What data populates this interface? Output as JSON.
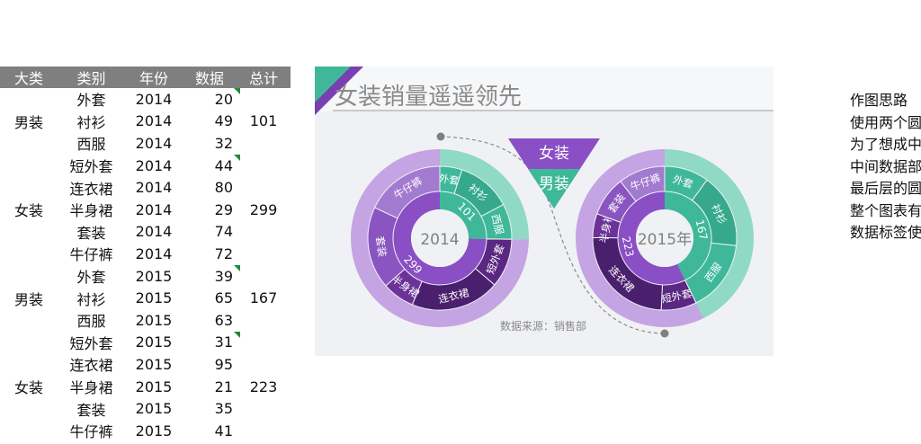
{
  "table": {
    "headers": [
      "大类",
      "类别",
      "年份",
      "数据",
      "总计"
    ],
    "rows": [
      {
        "group": "",
        "category": "外套",
        "year": "2014",
        "value": "20",
        "total": "",
        "flag": true
      },
      {
        "group": "男装",
        "category": "衬衫",
        "year": "2014",
        "value": "49",
        "total": "101",
        "flag": false
      },
      {
        "group": "",
        "category": "西服",
        "year": "2014",
        "value": "32",
        "total": "",
        "flag": false
      },
      {
        "group": "",
        "category": "短外套",
        "year": "2014",
        "value": "44",
        "total": "",
        "flag": true
      },
      {
        "group": "",
        "category": "连衣裙",
        "year": "2014",
        "value": "80",
        "total": "",
        "flag": false
      },
      {
        "group": "女装",
        "category": "半身裙",
        "year": "2014",
        "value": "29",
        "total": "299",
        "flag": false
      },
      {
        "group": "",
        "category": "套装",
        "year": "2014",
        "value": "74",
        "total": "",
        "flag": false
      },
      {
        "group": "",
        "category": "牛仔裤",
        "year": "2014",
        "value": "72",
        "total": "",
        "flag": false
      },
      {
        "group": "",
        "category": "外套",
        "year": "2015",
        "value": "39",
        "total": "",
        "flag": true
      },
      {
        "group": "男装",
        "category": "衬衫",
        "year": "2015",
        "value": "65",
        "total": "167",
        "flag": false
      },
      {
        "group": "",
        "category": "西服",
        "year": "2015",
        "value": "63",
        "total": "",
        "flag": false
      },
      {
        "group": "",
        "category": "短外套",
        "year": "2015",
        "value": "31",
        "total": "",
        "flag": true
      },
      {
        "group": "",
        "category": "连衣裙",
        "year": "2015",
        "value": "95",
        "total": "",
        "flag": false
      },
      {
        "group": "女装",
        "category": "半身裙",
        "year": "2015",
        "value": "21",
        "total": "223",
        "flag": false
      },
      {
        "group": "",
        "category": "套装",
        "year": "2015",
        "value": "35",
        "total": "",
        "flag": false
      },
      {
        "group": "",
        "category": "牛仔裤",
        "year": "2015",
        "value": "41",
        "total": "",
        "flag": false
      }
    ]
  },
  "chart_data": {
    "type": "pie",
    "title": "女装销量遥遥领先",
    "source": "数据来源：销售部",
    "legend": [
      {
        "label": "女装",
        "color": "#7a3fb0"
      },
      {
        "label": "男装",
        "color": "#3fb89a"
      }
    ],
    "colors": {
      "men": "#3fb89a",
      "men_light": "#8fd9c5",
      "women": "#8a4fc4",
      "women_light": "#c4a4e2",
      "women_dark": "#5a2782"
    },
    "years": [
      {
        "year_label": "2014",
        "men_total": "101",
        "women_total": "299",
        "slices": [
          {
            "category": "外套",
            "group": "男装",
            "value": 20
          },
          {
            "category": "衬衫",
            "group": "男装",
            "value": 49
          },
          {
            "category": "西服",
            "group": "男装",
            "value": 32
          },
          {
            "category": "短外套",
            "group": "女装",
            "value": 44
          },
          {
            "category": "连衣裙",
            "group": "女装",
            "value": 80
          },
          {
            "category": "半身裙",
            "group": "女装",
            "value": 29
          },
          {
            "category": "套装",
            "group": "女装",
            "value": 74
          },
          {
            "category": "牛仔裤",
            "group": "女装",
            "value": 72
          }
        ]
      },
      {
        "year_label": "2015年",
        "men_total": "167",
        "women_total": "223",
        "slices": [
          {
            "category": "外套",
            "group": "男装",
            "value": 39
          },
          {
            "category": "衬衫",
            "group": "男装",
            "value": 65
          },
          {
            "category": "西服",
            "group": "男装",
            "value": 63
          },
          {
            "category": "短外套",
            "group": "女装",
            "value": 31
          },
          {
            "category": "连衣裙",
            "group": "女装",
            "value": 95
          },
          {
            "category": "半身裙",
            "group": "女装",
            "value": 21
          },
          {
            "category": "套装",
            "group": "女装",
            "value": 35
          },
          {
            "category": "牛仔裤",
            "group": "女装",
            "value": 41
          }
        ]
      }
    ]
  },
  "notes": {
    "lines": [
      "作图思路",
      "使用两个圆",
      "为了想成中",
      "中间数据部",
      "最后层的圆",
      "整个图表有",
      "数据标签使"
    ]
  }
}
